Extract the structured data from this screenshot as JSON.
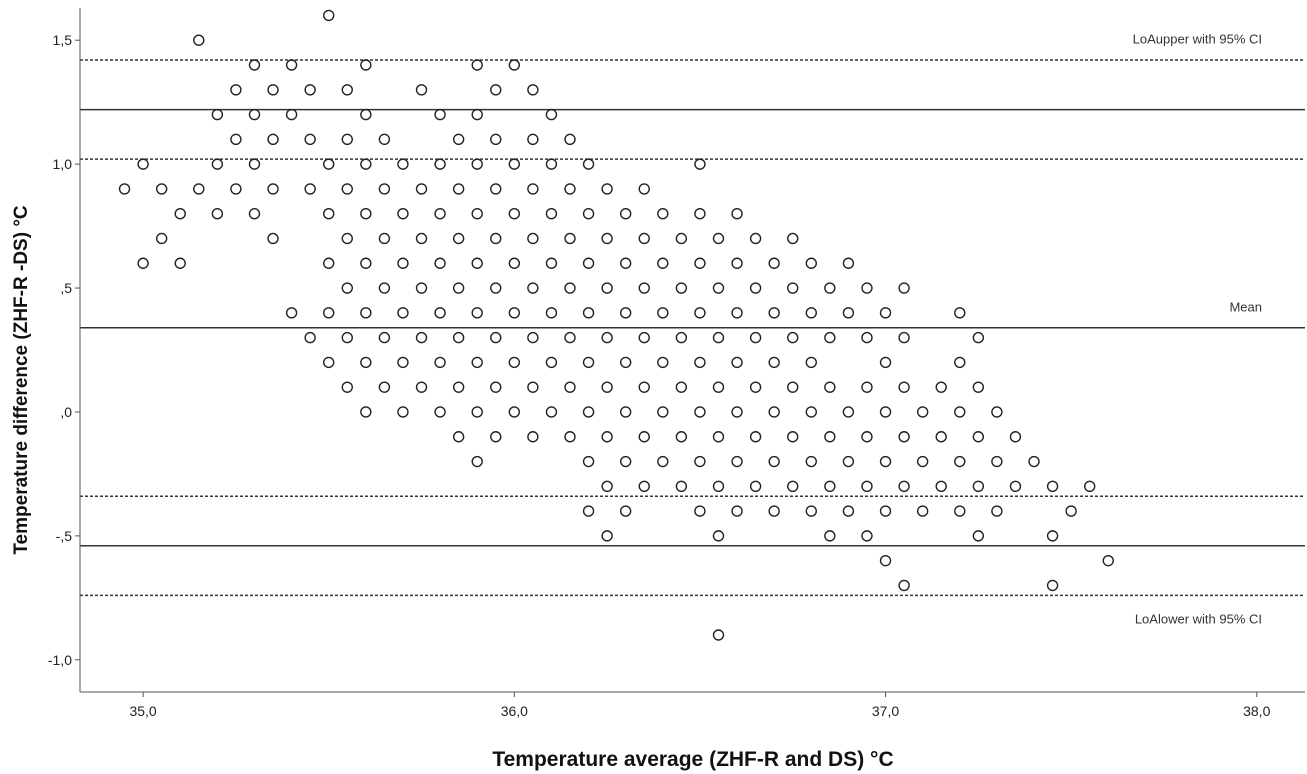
{
  "chart_data": {
    "type": "scatter",
    "title": "",
    "xlabel": "Temperature average (ZHF-R and DS) °C",
    "ylabel": "Temperature difference (ZHF-R -DS) °C",
    "xlim": [
      34.83,
      38.13
    ],
    "ylim": [
      -1.13,
      1.63
    ],
    "grid": false,
    "x_ticks": [
      {
        "value": 35.0,
        "label": "35,0"
      },
      {
        "value": 36.0,
        "label": "36,0"
      },
      {
        "value": 37.0,
        "label": "37,0"
      },
      {
        "value": 38.0,
        "label": "38,0"
      }
    ],
    "y_ticks": [
      {
        "value": 1.5,
        "label": "1,5"
      },
      {
        "value": 1.0,
        "label": "1,0"
      },
      {
        "value": 0.5,
        "label": ",5"
      },
      {
        "value": 0.0,
        "label": ",0"
      },
      {
        "value": -0.5,
        "label": "-,5"
      },
      {
        "value": -1.0,
        "label": "-1,0"
      }
    ],
    "reference_lines": [
      {
        "value": 1.42,
        "style": "dashed",
        "label": ""
      },
      {
        "value": 1.22,
        "style": "solid",
        "label": "LoAupper with 95% CI"
      },
      {
        "value": 1.02,
        "style": "dashed",
        "label": ""
      },
      {
        "value": 0.34,
        "style": "solid",
        "label": "Mean"
      },
      {
        "value": -0.34,
        "style": "dashed",
        "label": ""
      },
      {
        "value": -0.54,
        "style": "solid",
        "label": ""
      },
      {
        "value": -0.74,
        "style": "dashed",
        "label": "LoAlower with 95% CI"
      }
    ],
    "points": [
      [
        35.5,
        1.6
      ],
      [
        35.15,
        1.5
      ],
      [
        35.3,
        1.4
      ],
      [
        35.4,
        1.4
      ],
      [
        35.6,
        1.4
      ],
      [
        35.9,
        1.4
      ],
      [
        36.0,
        1.4
      ],
      [
        35.25,
        1.3
      ],
      [
        35.35,
        1.3
      ],
      [
        35.45,
        1.3
      ],
      [
        35.55,
        1.3
      ],
      [
        35.75,
        1.3
      ],
      [
        35.95,
        1.3
      ],
      [
        36.05,
        1.3
      ],
      [
        35.2,
        1.2
      ],
      [
        35.3,
        1.2
      ],
      [
        35.4,
        1.2
      ],
      [
        35.6,
        1.2
      ],
      [
        35.8,
        1.2
      ],
      [
        35.9,
        1.2
      ],
      [
        36.1,
        1.2
      ],
      [
        35.25,
        1.1
      ],
      [
        35.35,
        1.1
      ],
      [
        35.45,
        1.1
      ],
      [
        35.55,
        1.1
      ],
      [
        35.65,
        1.1
      ],
      [
        35.85,
        1.1
      ],
      [
        35.95,
        1.1
      ],
      [
        36.05,
        1.1
      ],
      [
        36.15,
        1.1
      ],
      [
        35.0,
        1.0
      ],
      [
        35.2,
        1.0
      ],
      [
        35.3,
        1.0
      ],
      [
        35.5,
        1.0
      ],
      [
        35.6,
        1.0
      ],
      [
        35.7,
        1.0
      ],
      [
        35.8,
        1.0
      ],
      [
        35.9,
        1.0
      ],
      [
        36.0,
        1.0
      ],
      [
        36.1,
        1.0
      ],
      [
        36.2,
        1.0
      ],
      [
        36.5,
        1.0
      ],
      [
        34.95,
        0.9
      ],
      [
        35.05,
        0.9
      ],
      [
        35.15,
        0.9
      ],
      [
        35.25,
        0.9
      ],
      [
        35.35,
        0.9
      ],
      [
        35.45,
        0.9
      ],
      [
        35.55,
        0.9
      ],
      [
        35.65,
        0.9
      ],
      [
        35.75,
        0.9
      ],
      [
        35.85,
        0.9
      ],
      [
        35.95,
        0.9
      ],
      [
        36.05,
        0.9
      ],
      [
        36.15,
        0.9
      ],
      [
        36.25,
        0.9
      ],
      [
        36.35,
        0.9
      ],
      [
        35.1,
        0.8
      ],
      [
        35.2,
        0.8
      ],
      [
        35.3,
        0.8
      ],
      [
        35.5,
        0.8
      ],
      [
        35.6,
        0.8
      ],
      [
        35.7,
        0.8
      ],
      [
        35.8,
        0.8
      ],
      [
        35.9,
        0.8
      ],
      [
        36.0,
        0.8
      ],
      [
        36.1,
        0.8
      ],
      [
        36.2,
        0.8
      ],
      [
        36.3,
        0.8
      ],
      [
        36.4,
        0.8
      ],
      [
        36.5,
        0.8
      ],
      [
        36.6,
        0.8
      ],
      [
        35.05,
        0.7
      ],
      [
        35.35,
        0.7
      ],
      [
        35.55,
        0.7
      ],
      [
        35.65,
        0.7
      ],
      [
        35.75,
        0.7
      ],
      [
        35.85,
        0.7
      ],
      [
        35.95,
        0.7
      ],
      [
        36.05,
        0.7
      ],
      [
        36.15,
        0.7
      ],
      [
        36.25,
        0.7
      ],
      [
        36.35,
        0.7
      ],
      [
        36.45,
        0.7
      ],
      [
        36.55,
        0.7
      ],
      [
        36.65,
        0.7
      ],
      [
        36.75,
        0.7
      ],
      [
        35.0,
        0.6
      ],
      [
        35.1,
        0.6
      ],
      [
        35.5,
        0.6
      ],
      [
        35.6,
        0.6
      ],
      [
        35.7,
        0.6
      ],
      [
        35.8,
        0.6
      ],
      [
        35.9,
        0.6
      ],
      [
        36.0,
        0.6
      ],
      [
        36.1,
        0.6
      ],
      [
        36.2,
        0.6
      ],
      [
        36.3,
        0.6
      ],
      [
        36.4,
        0.6
      ],
      [
        36.5,
        0.6
      ],
      [
        36.6,
        0.6
      ],
      [
        36.7,
        0.6
      ],
      [
        36.8,
        0.6
      ],
      [
        36.9,
        0.6
      ],
      [
        35.55,
        0.5
      ],
      [
        35.65,
        0.5
      ],
      [
        35.75,
        0.5
      ],
      [
        35.85,
        0.5
      ],
      [
        35.95,
        0.5
      ],
      [
        36.05,
        0.5
      ],
      [
        36.15,
        0.5
      ],
      [
        36.25,
        0.5
      ],
      [
        36.35,
        0.5
      ],
      [
        36.45,
        0.5
      ],
      [
        36.55,
        0.5
      ],
      [
        36.65,
        0.5
      ],
      [
        36.75,
        0.5
      ],
      [
        36.85,
        0.5
      ],
      [
        36.95,
        0.5
      ],
      [
        37.05,
        0.5
      ],
      [
        35.4,
        0.4
      ],
      [
        35.5,
        0.4
      ],
      [
        35.6,
        0.4
      ],
      [
        35.7,
        0.4
      ],
      [
        35.8,
        0.4
      ],
      [
        35.9,
        0.4
      ],
      [
        36.0,
        0.4
      ],
      [
        36.1,
        0.4
      ],
      [
        36.2,
        0.4
      ],
      [
        36.3,
        0.4
      ],
      [
        36.4,
        0.4
      ],
      [
        36.5,
        0.4
      ],
      [
        36.6,
        0.4
      ],
      [
        36.7,
        0.4
      ],
      [
        36.8,
        0.4
      ],
      [
        36.9,
        0.4
      ],
      [
        37.0,
        0.4
      ],
      [
        37.2,
        0.4
      ],
      [
        35.45,
        0.3
      ],
      [
        35.55,
        0.3
      ],
      [
        35.65,
        0.3
      ],
      [
        35.75,
        0.3
      ],
      [
        35.85,
        0.3
      ],
      [
        35.95,
        0.3
      ],
      [
        36.05,
        0.3
      ],
      [
        36.15,
        0.3
      ],
      [
        36.25,
        0.3
      ],
      [
        36.35,
        0.3
      ],
      [
        36.45,
        0.3
      ],
      [
        36.55,
        0.3
      ],
      [
        36.65,
        0.3
      ],
      [
        36.75,
        0.3
      ],
      [
        36.85,
        0.3
      ],
      [
        36.95,
        0.3
      ],
      [
        37.05,
        0.3
      ],
      [
        37.25,
        0.3
      ],
      [
        35.5,
        0.2
      ],
      [
        35.6,
        0.2
      ],
      [
        35.7,
        0.2
      ],
      [
        35.8,
        0.2
      ],
      [
        35.9,
        0.2
      ],
      [
        36.0,
        0.2
      ],
      [
        36.1,
        0.2
      ],
      [
        36.2,
        0.2
      ],
      [
        36.3,
        0.2
      ],
      [
        36.4,
        0.2
      ],
      [
        36.5,
        0.2
      ],
      [
        36.6,
        0.2
      ],
      [
        36.7,
        0.2
      ],
      [
        36.8,
        0.2
      ],
      [
        37.0,
        0.2
      ],
      [
        37.2,
        0.2
      ],
      [
        35.55,
        0.1
      ],
      [
        35.65,
        0.1
      ],
      [
        35.75,
        0.1
      ],
      [
        35.85,
        0.1
      ],
      [
        35.95,
        0.1
      ],
      [
        36.05,
        0.1
      ],
      [
        36.15,
        0.1
      ],
      [
        36.25,
        0.1
      ],
      [
        36.35,
        0.1
      ],
      [
        36.45,
        0.1
      ],
      [
        36.55,
        0.1
      ],
      [
        36.65,
        0.1
      ],
      [
        36.75,
        0.1
      ],
      [
        36.85,
        0.1
      ],
      [
        36.95,
        0.1
      ],
      [
        37.05,
        0.1
      ],
      [
        37.15,
        0.1
      ],
      [
        37.25,
        0.1
      ],
      [
        35.6,
        0.0
      ],
      [
        35.7,
        0.0
      ],
      [
        35.8,
        0.0
      ],
      [
        35.9,
        0.0
      ],
      [
        36.0,
        0.0
      ],
      [
        36.1,
        0.0
      ],
      [
        36.2,
        0.0
      ],
      [
        36.3,
        0.0
      ],
      [
        36.4,
        0.0
      ],
      [
        36.5,
        0.0
      ],
      [
        36.6,
        0.0
      ],
      [
        36.7,
        0.0
      ],
      [
        36.8,
        0.0
      ],
      [
        36.9,
        0.0
      ],
      [
        37.0,
        0.0
      ],
      [
        37.1,
        0.0
      ],
      [
        37.2,
        0.0
      ],
      [
        37.3,
        0.0
      ],
      [
        35.85,
        -0.1
      ],
      [
        35.95,
        -0.1
      ],
      [
        36.05,
        -0.1
      ],
      [
        36.15,
        -0.1
      ],
      [
        36.25,
        -0.1
      ],
      [
        36.35,
        -0.1
      ],
      [
        36.45,
        -0.1
      ],
      [
        36.55,
        -0.1
      ],
      [
        36.65,
        -0.1
      ],
      [
        36.75,
        -0.1
      ],
      [
        36.85,
        -0.1
      ],
      [
        36.95,
        -0.1
      ],
      [
        37.05,
        -0.1
      ],
      [
        37.15,
        -0.1
      ],
      [
        37.25,
        -0.1
      ],
      [
        37.35,
        -0.1
      ],
      [
        35.9,
        -0.2
      ],
      [
        36.2,
        -0.2
      ],
      [
        36.3,
        -0.2
      ],
      [
        36.4,
        -0.2
      ],
      [
        36.5,
        -0.2
      ],
      [
        36.6,
        -0.2
      ],
      [
        36.7,
        -0.2
      ],
      [
        36.8,
        -0.2
      ],
      [
        36.9,
        -0.2
      ],
      [
        37.0,
        -0.2
      ],
      [
        37.1,
        -0.2
      ],
      [
        37.2,
        -0.2
      ],
      [
        37.3,
        -0.2
      ],
      [
        37.4,
        -0.2
      ],
      [
        36.25,
        -0.3
      ],
      [
        36.35,
        -0.3
      ],
      [
        36.45,
        -0.3
      ],
      [
        36.55,
        -0.3
      ],
      [
        36.65,
        -0.3
      ],
      [
        36.75,
        -0.3
      ],
      [
        36.85,
        -0.3
      ],
      [
        36.95,
        -0.3
      ],
      [
        37.05,
        -0.3
      ],
      [
        37.15,
        -0.3
      ],
      [
        37.25,
        -0.3
      ],
      [
        37.35,
        -0.3
      ],
      [
        37.45,
        -0.3
      ],
      [
        37.55,
        -0.3
      ],
      [
        36.2,
        -0.4
      ],
      [
        36.3,
        -0.4
      ],
      [
        36.5,
        -0.4
      ],
      [
        36.6,
        -0.4
      ],
      [
        36.7,
        -0.4
      ],
      [
        36.8,
        -0.4
      ],
      [
        36.9,
        -0.4
      ],
      [
        37.0,
        -0.4
      ],
      [
        37.1,
        -0.4
      ],
      [
        37.2,
        -0.4
      ],
      [
        37.3,
        -0.4
      ],
      [
        37.5,
        -0.4
      ],
      [
        36.25,
        -0.5
      ],
      [
        36.55,
        -0.5
      ],
      [
        36.85,
        -0.5
      ],
      [
        36.95,
        -0.5
      ],
      [
        37.25,
        -0.5
      ],
      [
        37.45,
        -0.5
      ],
      [
        37.0,
        -0.6
      ],
      [
        37.6,
        -0.6
      ],
      [
        37.05,
        -0.7
      ],
      [
        37.45,
        -0.7
      ],
      [
        36.55,
        -0.9
      ]
    ]
  }
}
